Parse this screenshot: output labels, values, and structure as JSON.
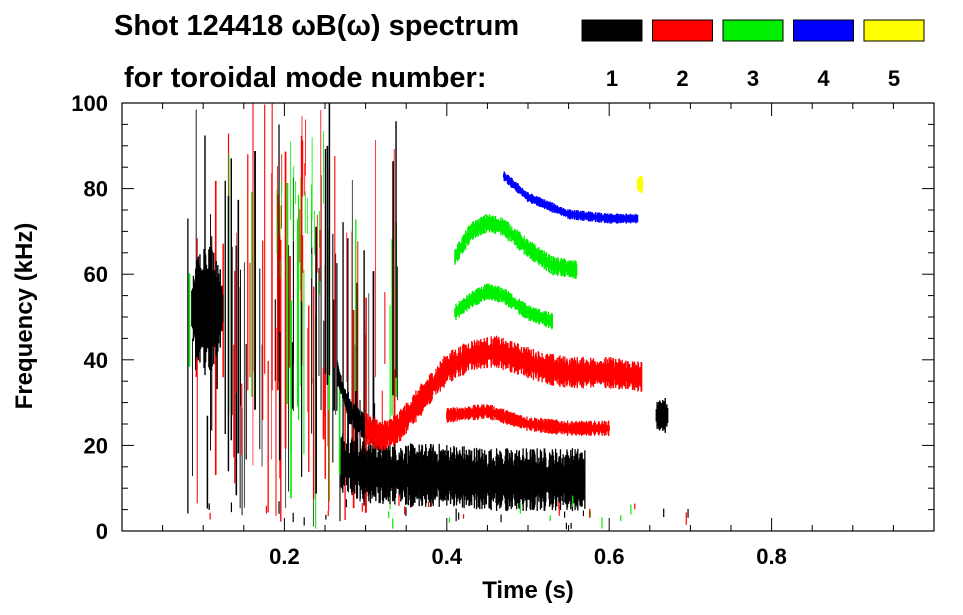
{
  "chart_data": {
    "type": "heatmap",
    "title": "Shot 124418 ωB(ω) spectrum",
    "subtitle": "for toroidal mode number:",
    "xlabel": "Time (s)",
    "ylabel": "Frequency (kHz)",
    "xlim": [
      0.0,
      1.0
    ],
    "ylim": [
      0,
      100
    ],
    "x_ticks": [
      "0.2",
      "0.4",
      "0.6",
      "0.8"
    ],
    "x_tick_values": [
      0.2,
      0.4,
      0.6,
      0.8
    ],
    "y_ticks": [
      "0",
      "20",
      "40",
      "60",
      "80",
      "100"
    ],
    "y_tick_values": [
      0,
      20,
      40,
      60,
      80,
      100
    ],
    "legend": [
      {
        "n": "1",
        "color": "#000000"
      },
      {
        "n": "2",
        "color": "#ff0000"
      },
      {
        "n": "3",
        "color": "#00ee00"
      },
      {
        "n": "4",
        "color": "#0000ff"
      },
      {
        "n": "5",
        "color": "#ffff00"
      }
    ],
    "series": [
      {
        "name": "n=1 low-frequency band",
        "mode": "1",
        "kind": "band",
        "points": [
          [
            0.27,
            16
          ],
          [
            0.3,
            14
          ],
          [
            0.35,
            13
          ],
          [
            0.4,
            13
          ],
          [
            0.45,
            12
          ],
          [
            0.5,
            12
          ],
          [
            0.55,
            12
          ],
          [
            0.57,
            12
          ]
        ],
        "spread": 5
      },
      {
        "name": "n=1 early mode",
        "mode": "1",
        "kind": "blob",
        "center": [
          0.105,
          52
        ],
        "size": [
          0.02,
          13
        ]
      },
      {
        "name": "n=1 frequency chirp",
        "mode": "1",
        "kind": "band",
        "points": [
          [
            0.265,
            37
          ],
          [
            0.28,
            28
          ],
          [
            0.3,
            24
          ],
          [
            0.32,
            21
          ]
        ],
        "spread": 2
      },
      {
        "name": "n=2 chirping mode",
        "mode": "2",
        "kind": "band",
        "points": [
          [
            0.3,
            24
          ],
          [
            0.32,
            22
          ],
          [
            0.34,
            24
          ],
          [
            0.37,
            31
          ],
          [
            0.4,
            38
          ],
          [
            0.43,
            41
          ],
          [
            0.46,
            42
          ],
          [
            0.49,
            40
          ],
          [
            0.52,
            38
          ],
          [
            0.55,
            37
          ],
          [
            0.6,
            37
          ],
          [
            0.64,
            36
          ]
        ],
        "spread": 2.5
      },
      {
        "name": "n=2 lower mode",
        "mode": "2",
        "kind": "band",
        "points": [
          [
            0.4,
            27
          ],
          [
            0.45,
            28
          ],
          [
            0.5,
            25
          ],
          [
            0.55,
            24
          ],
          [
            0.6,
            24
          ]
        ],
        "spread": 1.2
      },
      {
        "name": "n=3 upper mode",
        "mode": "3",
        "kind": "band",
        "points": [
          [
            0.41,
            64
          ],
          [
            0.43,
            70
          ],
          [
            0.45,
            72
          ],
          [
            0.47,
            71
          ],
          [
            0.5,
            66
          ],
          [
            0.53,
            62
          ],
          [
            0.56,
            61
          ]
        ],
        "spread": 1.5
      },
      {
        "name": "n=3 lower mode",
        "mode": "3",
        "kind": "band",
        "points": [
          [
            0.41,
            51
          ],
          [
            0.43,
            54
          ],
          [
            0.45,
            56
          ],
          [
            0.47,
            55
          ],
          [
            0.5,
            51
          ],
          [
            0.53,
            49
          ]
        ],
        "spread": 1.3
      },
      {
        "name": "n=4 mode",
        "mode": "4",
        "kind": "band",
        "points": [
          [
            0.47,
            83
          ],
          [
            0.5,
            78
          ],
          [
            0.55,
            74
          ],
          [
            0.6,
            73
          ],
          [
            0.635,
            73
          ]
        ],
        "spread": 0.8
      },
      {
        "name": "n=5 mode",
        "mode": "5",
        "kind": "blob",
        "center": [
          0.638,
          81
        ],
        "size": [
          0.004,
          2
        ]
      },
      {
        "name": "n=1 late mode",
        "mode": "1",
        "kind": "blob",
        "center": [
          0.665,
          27
        ],
        "size": [
          0.008,
          4
        ]
      }
    ],
    "vertical_bursts_time_range": [
      0.08,
      0.34
    ]
  }
}
